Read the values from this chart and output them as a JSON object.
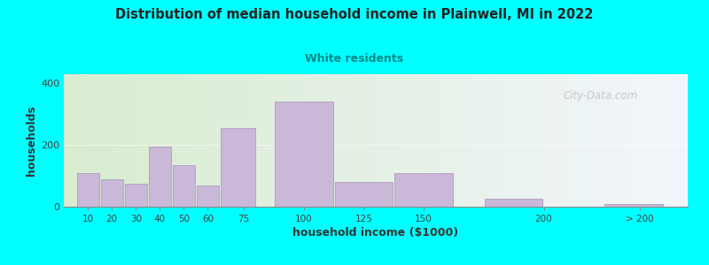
{
  "title": "Distribution of median household income in Plainwell, MI in 2022",
  "subtitle": "White residents",
  "xlabel": "household income ($1000)",
  "ylabel": "households",
  "bar_color": "#c9b8d8",
  "bar_edgecolor": "#a890b8",
  "background_color": "#00ffff",
  "subtitle_color": "#008888",
  "title_color": "#222222",
  "bar_lefts": [
    5,
    15,
    25,
    35,
    45,
    55,
    65,
    87.5,
    112.5,
    137.5,
    175,
    225
  ],
  "bar_widths": [
    10,
    10,
    10,
    10,
    10,
    10,
    15,
    25,
    25,
    25,
    25,
    25
  ],
  "values": [
    110,
    90,
    75,
    195,
    135,
    70,
    255,
    340,
    80,
    110,
    25,
    10
  ],
  "tick_positions": [
    10,
    20,
    30,
    40,
    50,
    60,
    75,
    100,
    125,
    150,
    200,
    240
  ],
  "tick_labels": [
    "10",
    "20",
    "30",
    "40",
    "50",
    "60",
    "75",
    "100",
    "125",
    "150",
    "200",
    "> 200"
  ],
  "ylim": [
    0,
    430
  ],
  "yticks": [
    0,
    200,
    400
  ],
  "xlim": [
    0,
    260
  ],
  "watermark": "City-Data.com"
}
